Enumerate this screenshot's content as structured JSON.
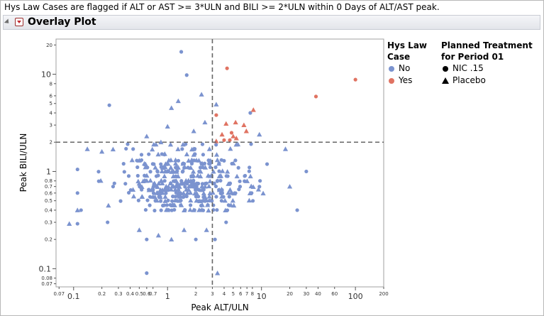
{
  "header_note": "Hys Law Cases are flagged if ALT or AST >= 3*ULN and BILI >= 2*ULN within 0 Days of ALT/AST peak.",
  "panel": {
    "title": "Overlay Plot"
  },
  "colors": {
    "no": "#7b93cf",
    "yes": "#e07362",
    "refline": "#666666"
  },
  "icons": {
    "disclosure": "disclosure-triangle-icon",
    "menu": "red-triangle-menu-icon"
  },
  "legend": {
    "color_title_line1": "Hys Law",
    "color_title_line2": "Case",
    "color_items": [
      {
        "label": "No",
        "color": "#7b93cf"
      },
      {
        "label": "Yes",
        "color": "#e07362"
      }
    ],
    "marker_title_line1": "Planned Treatment",
    "marker_title_line2": "for Period 01",
    "marker_items": [
      {
        "label": "NIC .15",
        "marker": "circle"
      },
      {
        "label": "Placebo",
        "marker": "triangle"
      }
    ]
  },
  "chart_data": {
    "type": "scatter",
    "xlabel": "Peak ALT/ULN",
    "ylabel": "Peak BILI/ULN",
    "xscale": "log",
    "yscale": "log",
    "xlim": [
      0.065,
      200
    ],
    "ylim": [
      0.065,
      23
    ],
    "grid": false,
    "legend_position": "right",
    "reference_lines": {
      "x": 3,
      "y": 2
    },
    "x_ticks": [
      {
        "v": 0.07,
        "label": "0.07",
        "major": false
      },
      {
        "v": 0.1,
        "label": "0.1",
        "major": true
      },
      {
        "v": 0.2,
        "label": "0.2",
        "major": false
      },
      {
        "v": 0.3,
        "label": "0.3",
        "major": false
      },
      {
        "v": 0.4,
        "label": "0.4",
        "major": false
      },
      {
        "v": 0.5,
        "label": "0.5",
        "major": false
      },
      {
        "v": 0.6,
        "label": "0.6",
        "major": false
      },
      {
        "v": 0.7,
        "label": "0.7",
        "major": false
      },
      {
        "v": 1,
        "label": "1",
        "major": true
      },
      {
        "v": 2,
        "label": "2",
        "major": false
      },
      {
        "v": 3,
        "label": "3",
        "major": false
      },
      {
        "v": 4,
        "label": "4",
        "major": false
      },
      {
        "v": 5,
        "label": "5",
        "major": false
      },
      {
        "v": 6,
        "label": "6",
        "major": false
      },
      {
        "v": 7,
        "label": "7",
        "major": false
      },
      {
        "v": 8,
        "label": "8",
        "major": false
      },
      {
        "v": 10,
        "label": "10",
        "major": true
      },
      {
        "v": 20,
        "label": "20",
        "major": false
      },
      {
        "v": 30,
        "label": "30",
        "major": false
      },
      {
        "v": 40,
        "label": "40",
        "major": false
      },
      {
        "v": 60,
        "label": "60",
        "major": false
      },
      {
        "v": 100,
        "label": "100",
        "major": true
      },
      {
        "v": 200,
        "label": "200",
        "major": false
      }
    ],
    "y_ticks": [
      {
        "v": 0.07,
        "label": "0.07",
        "major": false
      },
      {
        "v": 0.08,
        "label": "0.08",
        "major": false
      },
      {
        "v": 0.1,
        "label": "0.1",
        "major": true
      },
      {
        "v": 0.2,
        "label": "0.2",
        "major": false
      },
      {
        "v": 0.3,
        "label": "0.3",
        "major": false
      },
      {
        "v": 0.4,
        "label": "0.4",
        "major": false
      },
      {
        "v": 0.5,
        "label": "0.5",
        "major": false
      },
      {
        "v": 0.6,
        "label": "0.6",
        "major": false
      },
      {
        "v": 0.7,
        "label": "0.7",
        "major": false
      },
      {
        "v": 0.8,
        "label": "0.8",
        "major": false
      },
      {
        "v": 1,
        "label": "1",
        "major": true
      },
      {
        "v": 2,
        "label": "2",
        "major": false
      },
      {
        "v": 3,
        "label": "3",
        "major": false
      },
      {
        "v": 4,
        "label": "4",
        "major": false
      },
      {
        "v": 5,
        "label": "5",
        "major": false
      },
      {
        "v": 6,
        "label": "6",
        "major": false
      },
      {
        "v": 8,
        "label": "8",
        "major": false
      },
      {
        "v": 10,
        "label": "10",
        "major": true
      },
      {
        "v": 20,
        "label": "20",
        "major": false
      }
    ],
    "series": [
      {
        "name": "No",
        "color": "#7b93cf",
        "points": [
          {
            "x": 1.4,
            "y": 17,
            "m": "circle"
          },
          {
            "x": 1.6,
            "y": 9.8,
            "m": "circle"
          },
          {
            "x": 0.24,
            "y": 4.8,
            "m": "circle"
          },
          {
            "x": 1.3,
            "y": 5.3,
            "m": "triangle"
          },
          {
            "x": 2.3,
            "y": 6.2,
            "m": "triangle"
          },
          {
            "x": 3.3,
            "y": 4.9,
            "m": "triangle"
          },
          {
            "x": 1.1,
            "y": 4.5,
            "m": "triangle"
          },
          {
            "x": 2.5,
            "y": 3.2,
            "m": "triangle"
          },
          {
            "x": 1.9,
            "y": 2.6,
            "m": "triangle"
          },
          {
            "x": 7.6,
            "y": 4.0,
            "m": "circle"
          },
          {
            "x": 1.0,
            "y": 2.9,
            "m": "triangle"
          },
          {
            "x": 0.6,
            "y": 2.3,
            "m": "triangle"
          },
          {
            "x": 0.85,
            "y": 2.0,
            "m": "triangle"
          },
          {
            "x": 9.5,
            "y": 2.4,
            "m": "triangle"
          },
          {
            "x": 18,
            "y": 1.7,
            "m": "triangle"
          },
          {
            "x": 0.14,
            "y": 1.7,
            "m": "triangle"
          },
          {
            "x": 0.2,
            "y": 1.6,
            "m": "triangle"
          },
          {
            "x": 30,
            "y": 1.0,
            "m": "circle"
          },
          {
            "x": 0.11,
            "y": 1.05,
            "m": "circle"
          },
          {
            "x": 0.11,
            "y": 0.6,
            "m": "circle"
          },
          {
            "x": 0.11,
            "y": 0.4,
            "m": "triangle"
          },
          {
            "x": 0.12,
            "y": 0.4,
            "m": "circle"
          },
          {
            "x": 0.09,
            "y": 0.29,
            "m": "triangle"
          },
          {
            "x": 0.11,
            "y": 0.29,
            "m": "circle"
          },
          {
            "x": 0.6,
            "y": 0.09,
            "m": "circle"
          },
          {
            "x": 3.4,
            "y": 0.09,
            "m": "triangle"
          },
          {
            "x": 0.6,
            "y": 0.2,
            "m": "circle"
          },
          {
            "x": 1.1,
            "y": 0.2,
            "m": "triangle"
          },
          {
            "x": 2.0,
            "y": 0.2,
            "m": "circle"
          },
          {
            "x": 3.2,
            "y": 0.2,
            "m": "circle"
          },
          {
            "x": 0.8,
            "y": 0.22,
            "m": "triangle"
          },
          {
            "x": 0.5,
            "y": 0.25,
            "m": "triangle"
          },
          {
            "x": 1.5,
            "y": 0.25,
            "m": "triangle"
          },
          {
            "x": 2.6,
            "y": 0.25,
            "m": "triangle"
          },
          {
            "x": 4.2,
            "y": 0.3,
            "m": "circle"
          },
          {
            "x": 0.23,
            "y": 0.3,
            "m": "circle"
          },
          {
            "x": 24,
            "y": 0.4,
            "m": "circle"
          },
          {
            "x": 20,
            "y": 0.7,
            "m": "triangle"
          }
        ]
      },
      {
        "name": "Yes",
        "color": "#e07362",
        "points": [
          {
            "x": 100,
            "y": 8.8,
            "m": "circle"
          },
          {
            "x": 38,
            "y": 5.9,
            "m": "circle"
          },
          {
            "x": 4.3,
            "y": 11.5,
            "m": "circle"
          },
          {
            "x": 8.2,
            "y": 4.3,
            "m": "triangle"
          },
          {
            "x": 3.3,
            "y": 3.8,
            "m": "circle"
          },
          {
            "x": 4.2,
            "y": 3.1,
            "m": "triangle"
          },
          {
            "x": 5.3,
            "y": 3.2,
            "m": "triangle"
          },
          {
            "x": 6.5,
            "y": 3.0,
            "m": "triangle"
          },
          {
            "x": 6.9,
            "y": 2.6,
            "m": "triangle"
          },
          {
            "x": 4.8,
            "y": 2.5,
            "m": "circle"
          },
          {
            "x": 3.8,
            "y": 2.4,
            "m": "triangle"
          },
          {
            "x": 5.0,
            "y": 2.3,
            "m": "triangle"
          },
          {
            "x": 4.0,
            "y": 2.1,
            "m": "circle"
          },
          {
            "x": 4.6,
            "y": 2.1,
            "m": "circle"
          },
          {
            "x": 3.3,
            "y": 2.05,
            "m": "triangle"
          },
          {
            "x": 5.4,
            "y": 2.2,
            "m": "triangle"
          }
        ]
      }
    ],
    "dense_clusters": [
      {
        "series": "No",
        "description_ref": "main cloud",
        "x_range": [
          0.15,
          15
        ],
        "y_values": [
          0.4,
          0.45,
          0.5,
          0.55,
          0.6,
          0.65,
          0.7,
          0.75,
          0.8,
          0.9,
          1.0,
          1.1,
          1.2,
          1.3,
          1.5,
          1.7,
          1.9
        ]
      }
    ]
  }
}
